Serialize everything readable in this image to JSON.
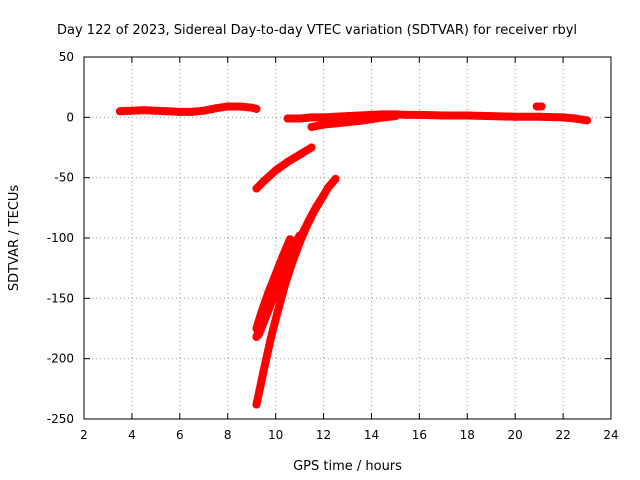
{
  "chart_data": {
    "type": "scatter",
    "title": "Day 122 of 2023, Sidereal Day-to-day VTEC variation (SDTVAR) for receiver rbyl",
    "xlabel": "GPS time / hours",
    "ylabel": "SDTVAR / TECUs",
    "xlim": [
      2,
      24
    ],
    "ylim": [
      -250,
      50
    ],
    "xticks": [
      2,
      4,
      6,
      8,
      10,
      12,
      14,
      16,
      18,
      20,
      22,
      24
    ],
    "yticks": [
      50,
      0,
      -50,
      -100,
      -150,
      -200,
      -250
    ],
    "grid": true,
    "marker_color": "#ff0000",
    "series": [
      {
        "x": [
          3.5,
          4,
          4.5,
          5,
          5.5,
          6,
          6.5,
          7,
          7.5,
          8,
          8.5,
          9,
          9.2
        ],
        "y": [
          5,
          5.5,
          6,
          5.5,
          5,
          4.5,
          4.5,
          5.5,
          7.5,
          9,
          9,
          8,
          7
        ]
      },
      {
        "x": [
          10.5,
          11,
          11.5,
          12,
          12.5,
          13,
          13.5,
          14,
          14.5,
          15,
          15.5,
          16,
          17,
          18,
          19,
          20,
          21,
          22,
          22.5,
          23
        ],
        "y": [
          -1,
          -1,
          0,
          0,
          0.5,
          1,
          1.5,
          2,
          2.5,
          2.5,
          2,
          2,
          1.5,
          1.5,
          1,
          0.5,
          0.5,
          0,
          -1,
          -2.5
        ]
      },
      {
        "x": [
          11.5,
          12,
          12.5,
          13,
          13.5,
          14,
          14.5,
          15
        ],
        "y": [
          -8,
          -6,
          -5,
          -4,
          -3,
          -1.5,
          0,
          1
        ]
      },
      {
        "x": [
          9.2,
          9.5,
          10,
          10.5,
          11,
          11.5
        ],
        "y": [
          -59,
          -53,
          -44,
          -37,
          -31,
          -25
        ]
      },
      {
        "x": [
          9.2,
          9.4,
          9.7,
          10,
          10.3,
          10.6
        ],
        "y": [
          -175,
          -162,
          -145,
          -130,
          -115,
          -101
        ]
      },
      {
        "x": [
          9.2,
          9.5,
          9.8,
          10.1,
          10.4,
          10.7,
          11
        ],
        "y": [
          -182,
          -165,
          -148,
          -133,
          -120,
          -108,
          -98
        ]
      },
      {
        "x": [
          9.2,
          9.5,
          9.8,
          10.1,
          10.4,
          10.7,
          11,
          11.3,
          11.6,
          11.9,
          12.2,
          12.5
        ],
        "y": [
          -238,
          -210,
          -183,
          -160,
          -138,
          -120,
          -104,
          -90,
          -78,
          -68,
          -58,
          -51
        ]
      },
      {
        "x": [
          9.3,
          9.6,
          9.9,
          10.2,
          10.5,
          10.8,
          11.1,
          11.4,
          11.7,
          12
        ],
        "y": [
          -180,
          -165,
          -150,
          -138,
          -124,
          -110,
          -97,
          -85,
          -74,
          -65
        ]
      },
      {
        "x": [
          20.9,
          21.1
        ],
        "y": [
          9,
          9
        ]
      }
    ]
  }
}
